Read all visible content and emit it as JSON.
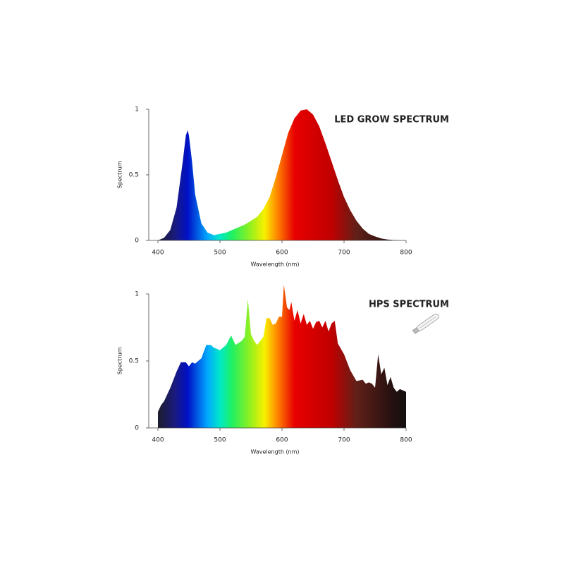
{
  "chart_data": [
    {
      "type": "area",
      "title": "LED GROW SPECTRUM",
      "xlabel": "Wavelength (nm)",
      "ylabel": "Spectrum",
      "x": [
        400,
        410,
        420,
        430,
        440,
        445,
        448,
        450,
        455,
        460,
        470,
        480,
        490,
        500,
        510,
        520,
        530,
        540,
        550,
        560,
        570,
        580,
        590,
        600,
        610,
        620,
        630,
        640,
        650,
        660,
        670,
        680,
        690,
        700,
        710,
        720,
        730,
        740,
        750,
        760,
        770,
        780,
        790,
        800
      ],
      "values": [
        0,
        0.02,
        0.08,
        0.25,
        0.6,
        0.8,
        0.84,
        0.8,
        0.6,
        0.35,
        0.13,
        0.06,
        0.04,
        0.05,
        0.06,
        0.08,
        0.1,
        0.12,
        0.15,
        0.18,
        0.24,
        0.33,
        0.48,
        0.65,
        0.82,
        0.93,
        0.99,
        1.0,
        0.96,
        0.87,
        0.74,
        0.6,
        0.46,
        0.33,
        0.23,
        0.15,
        0.09,
        0.05,
        0.03,
        0.015,
        0.007,
        0.003,
        0.001,
        0
      ],
      "xlim": [
        400,
        800
      ],
      "xticks": [
        400,
        500,
        600,
        700,
        800
      ],
      "ylim": [
        0,
        1
      ],
      "yticks": [
        0,
        0.5,
        1
      ]
    },
    {
      "type": "area",
      "title": "HPS SPECTRUM",
      "xlabel": "Wavelength (nm)",
      "ylabel": "Spectrum",
      "x": [
        400,
        405,
        410,
        420,
        430,
        437,
        445,
        450,
        455,
        460,
        470,
        478,
        485,
        490,
        500,
        510,
        518,
        525,
        535,
        540,
        545,
        550,
        555,
        560,
        570,
        575,
        580,
        585,
        590,
        595,
        600,
        603,
        608,
        612,
        615,
        620,
        625,
        630,
        635,
        640,
        645,
        650,
        655,
        660,
        665,
        670,
        675,
        680,
        685,
        690,
        700,
        710,
        720,
        730,
        735,
        740,
        745,
        750,
        755,
        760,
        765,
        770,
        775,
        780,
        785,
        790,
        800
      ],
      "values": [
        0.12,
        0.17,
        0.2,
        0.3,
        0.42,
        0.49,
        0.49,
        0.46,
        0.49,
        0.48,
        0.52,
        0.62,
        0.62,
        0.6,
        0.58,
        0.62,
        0.69,
        0.62,
        0.65,
        0.68,
        0.96,
        0.7,
        0.65,
        0.62,
        0.68,
        0.82,
        0.82,
        0.77,
        0.78,
        0.83,
        0.83,
        1.07,
        0.9,
        0.88,
        0.94,
        0.8,
        0.88,
        0.78,
        0.85,
        0.77,
        0.8,
        0.74,
        0.79,
        0.8,
        0.75,
        0.8,
        0.72,
        0.78,
        0.8,
        0.63,
        0.55,
        0.43,
        0.35,
        0.36,
        0.33,
        0.34,
        0.33,
        0.3,
        0.55,
        0.4,
        0.45,
        0.32,
        0.38,
        0.3,
        0.27,
        0.29,
        0.27
      ],
      "xlim": [
        400,
        800
      ],
      "xticks": [
        400,
        500,
        600,
        700,
        800
      ],
      "ylim": [
        0,
        1
      ],
      "yticks": [
        0,
        0.5,
        1
      ]
    }
  ]
}
